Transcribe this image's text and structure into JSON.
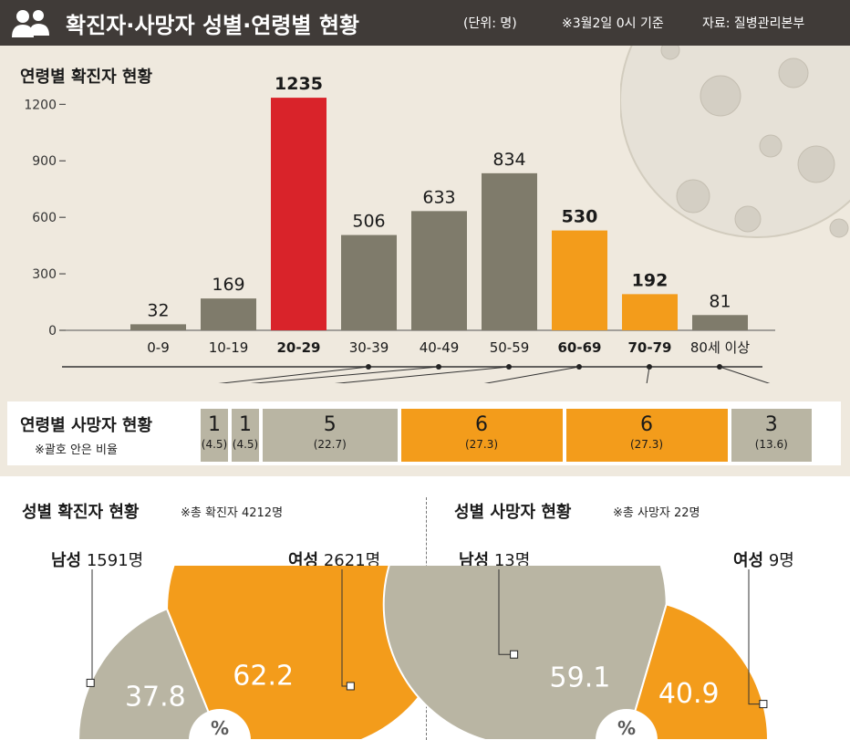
{
  "header": {
    "title": "확진자·사망자 성별·연령별 현황",
    "unit": "(단위: 명)",
    "basis": "※3월2일 0시 기준",
    "source": "자료: 질병관리본부"
  },
  "colors": {
    "gray": "#7f7b6b",
    "red": "#d9232a",
    "orange": "#f39c1b",
    "light": "#b9b5a3",
    "header": "#403b38"
  },
  "chart_data": [
    {
      "type": "bar",
      "title": "연령별 확진자 현황",
      "categories": [
        "0-9",
        "10-19",
        "20-29",
        "30-39",
        "40-49",
        "50-59",
        "60-69",
        "70-79",
        "80세 이상"
      ],
      "values": [
        32,
        169,
        1235,
        506,
        633,
        834,
        530,
        192,
        81
      ],
      "highlight": [
        "gray",
        "gray",
        "red",
        "gray",
        "gray",
        "gray",
        "orange",
        "orange",
        "gray"
      ],
      "y_ticks": [
        0,
        300,
        600,
        900,
        1200
      ],
      "ylim": [
        0,
        1250
      ]
    },
    {
      "type": "bar",
      "title": "연령별 사망자 현황",
      "note": "※괄호 안은 비율",
      "segments": [
        {
          "count": "1",
          "percent": "(4.5)",
          "color": "light"
        },
        {
          "count": "1",
          "percent": "(4.5)",
          "color": "light"
        },
        {
          "count": "5",
          "percent": "(22.7)",
          "color": "light"
        },
        {
          "count": "6",
          "percent": "(27.3)",
          "color": "orange"
        },
        {
          "count": "6",
          "percent": "(27.3)",
          "color": "orange"
        },
        {
          "count": "3",
          "percent": "(13.6)",
          "color": "light"
        }
      ],
      "links_to_age_groups": [
        "30-39",
        "40-49",
        "50-59",
        "60-69",
        "70-79",
        "80세 이상"
      ]
    },
    {
      "type": "pie",
      "title": "성별 확진자 현황",
      "note": "※총 확진자 4212명",
      "center_label": "%",
      "slices": [
        {
          "label": "남성",
          "count_text": "1591명",
          "value": 37.8,
          "color": "light"
        },
        {
          "label": "여성",
          "count_text": "2621명",
          "value": 62.2,
          "color": "orange"
        }
      ]
    },
    {
      "type": "pie",
      "title": "성별 사망자 현황",
      "note": "※총 사망자 22명",
      "center_label": "%",
      "slices": [
        {
          "label": "남성",
          "count_text": "13명",
          "value": 59.1,
          "color": "light"
        },
        {
          "label": "여성",
          "count_text": "9명",
          "value": 40.9,
          "color": "orange"
        }
      ]
    }
  ]
}
